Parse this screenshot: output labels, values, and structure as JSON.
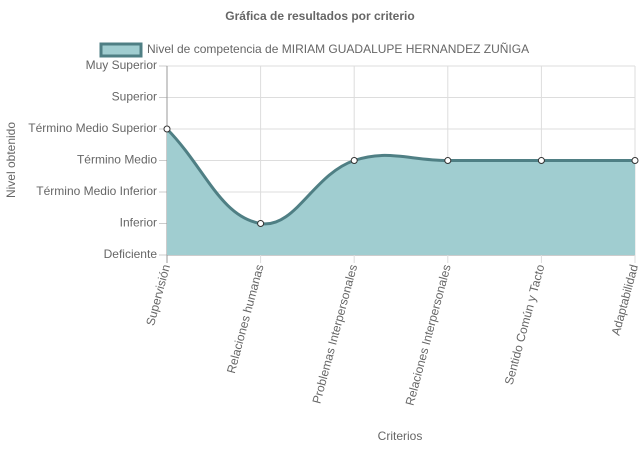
{
  "chart_data": {
    "type": "line",
    "title": "Gráfica de resultados por criterio",
    "x_label": "Criterios",
    "y_label": "Nivel obtenido",
    "categories": [
      "Supervisión",
      "Relaciones humanas",
      "Problemas Interpersonales",
      "Relaciones Interpersonales",
      "Sentido Común y Tacto",
      "Adaptabilidad"
    ],
    "series": [
      {
        "name": "Nivel de competencia de MIRIAM GUADALUPE HERNANDEZ ZUÑIGA",
        "color": "#4f7f84",
        "fill": "#a0cdd0",
        "values": [
          4,
          1,
          3,
          3,
          3,
          3
        ]
      }
    ],
    "ylim": [
      0,
      6
    ],
    "yticks": [
      {
        "value": 0,
        "label": "Deficiente"
      },
      {
        "value": 1,
        "label": "Inferior"
      },
      {
        "value": 2,
        "label": "Término Medio Inferior"
      },
      {
        "value": 3,
        "label": "Término Medio"
      },
      {
        "value": 4,
        "label": "Término Medio Superior"
      },
      {
        "value": 5,
        "label": "Superior"
      },
      {
        "value": 6,
        "label": "Muy Superior"
      }
    ],
    "grid": true,
    "legend": "top"
  }
}
